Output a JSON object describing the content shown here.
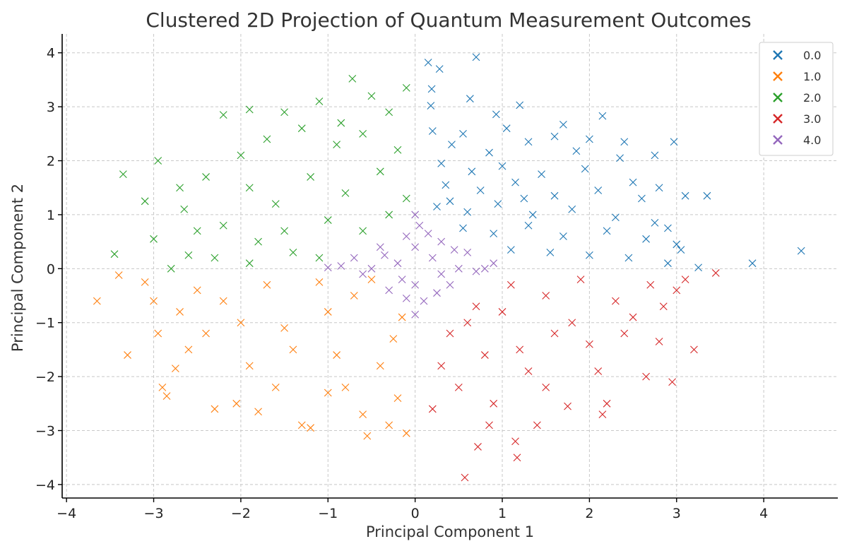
{
  "chart_data": {
    "type": "scatter",
    "title": "Clustered 2D Projection of Quantum Measurement Outcomes",
    "xlabel": "Principal Component 1",
    "ylabel": "Principal Component 2",
    "xlim": [
      -4.05,
      4.85
    ],
    "ylim": [
      -4.25,
      4.35
    ],
    "xticks": [
      -4,
      -3,
      -2,
      -1,
      0,
      1,
      2,
      3,
      4
    ],
    "yticks": [
      -4,
      -3,
      -2,
      -1,
      0,
      1,
      2,
      3,
      4
    ],
    "xtick_labels": [
      "−4",
      "−3",
      "−2",
      "−1",
      "0",
      "1",
      "2",
      "3",
      "4"
    ],
    "ytick_labels": [
      "−4",
      "−3",
      "−2",
      "−1",
      "0",
      "1",
      "2",
      "3",
      "4"
    ],
    "grid": true,
    "marker": "x",
    "legend_position": "top-right",
    "series": [
      {
        "name": "0.0",
        "color": "#1f77b4",
        "points": [
          [
            0.15,
            3.82
          ],
          [
            0.7,
            3.92
          ],
          [
            0.28,
            3.7
          ],
          [
            0.19,
            3.33
          ],
          [
            0.63,
            3.15
          ],
          [
            1.2,
            3.03
          ],
          [
            0.18,
            3.02
          ],
          [
            0.93,
            2.86
          ],
          [
            1.7,
            2.67
          ],
          [
            2.15,
            2.83
          ],
          [
            2.97,
            2.35
          ],
          [
            0.42,
            2.3
          ],
          [
            0.85,
            2.15
          ],
          [
            1.3,
            2.35
          ],
          [
            1.85,
            2.18
          ],
          [
            2.35,
            2.05
          ],
          [
            2.75,
            2.1
          ],
          [
            0.3,
            1.95
          ],
          [
            0.65,
            1.8
          ],
          [
            1.0,
            1.9
          ],
          [
            1.45,
            1.75
          ],
          [
            1.95,
            1.85
          ],
          [
            2.5,
            1.6
          ],
          [
            2.8,
            1.5
          ],
          [
            0.35,
            1.55
          ],
          [
            0.75,
            1.45
          ],
          [
            1.15,
            1.6
          ],
          [
            1.6,
            1.35
          ],
          [
            2.1,
            1.45
          ],
          [
            2.6,
            1.3
          ],
          [
            3.1,
            1.35
          ],
          [
            3.35,
            1.35
          ],
          [
            0.25,
            1.15
          ],
          [
            0.6,
            1.05
          ],
          [
            0.95,
            1.2
          ],
          [
            1.35,
            1.0
          ],
          [
            1.8,
            1.1
          ],
          [
            2.3,
            0.95
          ],
          [
            2.75,
            0.85
          ],
          [
            0.55,
            0.75
          ],
          [
            0.9,
            0.65
          ],
          [
            1.3,
            0.8
          ],
          [
            1.7,
            0.6
          ],
          [
            2.2,
            0.7
          ],
          [
            2.65,
            0.55
          ],
          [
            3.0,
            0.45
          ],
          [
            1.1,
            0.35
          ],
          [
            1.55,
            0.3
          ],
          [
            2.0,
            0.25
          ],
          [
            2.45,
            0.2
          ],
          [
            2.9,
            0.1
          ],
          [
            3.25,
            0.02
          ],
          [
            3.87,
            0.1
          ],
          [
            4.43,
            0.33
          ],
          [
            0.2,
            2.55
          ],
          [
            0.55,
            2.5
          ],
          [
            1.05,
            2.6
          ],
          [
            1.6,
            2.45
          ],
          [
            2.0,
            2.4
          ],
          [
            2.4,
            2.35
          ],
          [
            0.4,
            1.25
          ],
          [
            1.25,
            1.3
          ],
          [
            2.9,
            0.75
          ],
          [
            3.05,
            0.35
          ]
        ]
      },
      {
        "name": "1.0",
        "color": "#ff7f0e",
        "points": [
          [
            -3.65,
            -0.6
          ],
          [
            -3.4,
            -0.12
          ],
          [
            -3.3,
            -1.6
          ],
          [
            -3.1,
            -0.25
          ],
          [
            -2.9,
            -2.2
          ],
          [
            -2.85,
            -2.36
          ],
          [
            -2.95,
            -1.2
          ],
          [
            -2.7,
            -0.8
          ],
          [
            -2.6,
            -1.5
          ],
          [
            -2.3,
            -2.6
          ],
          [
            -2.05,
            -2.5
          ],
          [
            -2.4,
            -1.2
          ],
          [
            -2.2,
            -0.6
          ],
          [
            -1.9,
            -1.8
          ],
          [
            -1.7,
            -0.3
          ],
          [
            -1.5,
            -1.1
          ],
          [
            -1.3,
            -2.9
          ],
          [
            -1.2,
            -2.95
          ],
          [
            -1.0,
            -2.3
          ],
          [
            -0.9,
            -1.6
          ],
          [
            -0.7,
            -0.5
          ],
          [
            -0.6,
            -2.7
          ],
          [
            -0.55,
            -3.1
          ],
          [
            -0.3,
            -2.9
          ],
          [
            -0.25,
            -1.3
          ],
          [
            -0.1,
            -3.05
          ],
          [
            -0.15,
            -0.9
          ],
          [
            -0.4,
            -1.8
          ],
          [
            -1.1,
            -0.25
          ],
          [
            -1.6,
            -2.2
          ],
          [
            -2.0,
            -1.0
          ],
          [
            -2.5,
            -0.4
          ],
          [
            -3.0,
            -0.6
          ],
          [
            -1.8,
            -2.65
          ],
          [
            -0.8,
            -2.2
          ],
          [
            -0.5,
            -0.2
          ],
          [
            -1.4,
            -1.5
          ],
          [
            -1.0,
            -0.8
          ],
          [
            -0.2,
            -2.4
          ],
          [
            -2.75,
            -1.85
          ]
        ]
      },
      {
        "name": "2.0",
        "color": "#2ca02c",
        "points": [
          [
            -0.72,
            3.52
          ],
          [
            -0.1,
            3.35
          ],
          [
            -0.5,
            3.2
          ],
          [
            -2.2,
            2.85
          ],
          [
            -1.9,
            2.95
          ],
          [
            -1.1,
            3.1
          ],
          [
            -1.5,
            2.9
          ],
          [
            -0.3,
            2.9
          ],
          [
            -2.95,
            2.0
          ],
          [
            -3.35,
            1.75
          ],
          [
            -3.1,
            1.25
          ],
          [
            -3.45,
            0.27
          ],
          [
            -2.8,
            0.0
          ],
          [
            -2.6,
            0.25
          ],
          [
            -3.0,
            0.55
          ],
          [
            -2.5,
            0.7
          ],
          [
            -2.7,
            1.5
          ],
          [
            -2.4,
            1.7
          ],
          [
            -2.0,
            2.1
          ],
          [
            -1.7,
            2.4
          ],
          [
            -1.3,
            2.6
          ],
          [
            -0.9,
            2.3
          ],
          [
            -0.6,
            2.5
          ],
          [
            -0.2,
            2.2
          ],
          [
            -1.9,
            1.5
          ],
          [
            -1.6,
            1.2
          ],
          [
            -1.2,
            1.7
          ],
          [
            -0.8,
            1.4
          ],
          [
            -0.4,
            1.8
          ],
          [
            -0.1,
            1.3
          ],
          [
            -2.2,
            0.8
          ],
          [
            -1.8,
            0.5
          ],
          [
            -1.4,
            0.3
          ],
          [
            -1.0,
            0.9
          ],
          [
            -0.6,
            0.7
          ],
          [
            -0.3,
            1.0
          ],
          [
            -2.3,
            0.2
          ],
          [
            -1.9,
            0.1
          ],
          [
            -1.5,
            0.7
          ],
          [
            -1.1,
            0.2
          ],
          [
            -2.65,
            1.1
          ],
          [
            -0.85,
            2.7
          ]
        ]
      },
      {
        "name": "3.0",
        "color": "#d62728",
        "points": [
          [
            0.57,
            -3.87
          ],
          [
            1.17,
            -3.5
          ],
          [
            0.72,
            -3.3
          ],
          [
            1.15,
            -3.2
          ],
          [
            0.85,
            -2.9
          ],
          [
            1.4,
            -2.9
          ],
          [
            2.15,
            -2.7
          ],
          [
            1.75,
            -2.55
          ],
          [
            3.2,
            -1.5
          ],
          [
            2.8,
            -1.35
          ],
          [
            2.95,
            -2.1
          ],
          [
            3.0,
            -0.4
          ],
          [
            3.45,
            -0.08
          ],
          [
            2.65,
            -2.0
          ],
          [
            2.4,
            -1.2
          ],
          [
            2.1,
            -1.9
          ],
          [
            1.8,
            -1.0
          ],
          [
            1.5,
            -2.2
          ],
          [
            1.2,
            -1.5
          ],
          [
            0.9,
            -2.5
          ],
          [
            0.6,
            -1.0
          ],
          [
            0.3,
            -1.8
          ],
          [
            0.2,
            -2.6
          ],
          [
            2.7,
            -0.3
          ],
          [
            2.3,
            -0.6
          ],
          [
            1.9,
            -0.2
          ],
          [
            1.5,
            -0.5
          ],
          [
            1.1,
            -0.3
          ],
          [
            0.7,
            -0.7
          ],
          [
            0.4,
            -1.2
          ],
          [
            2.5,
            -0.9
          ],
          [
            1.3,
            -1.9
          ],
          [
            0.5,
            -2.2
          ],
          [
            1.0,
            -0.8
          ],
          [
            2.0,
            -1.4
          ],
          [
            1.6,
            -1.2
          ],
          [
            0.8,
            -1.6
          ],
          [
            2.85,
            -0.7
          ],
          [
            3.1,
            -0.2
          ],
          [
            2.2,
            -2.5
          ]
        ]
      },
      {
        "name": "4.0",
        "color": "#9467bd",
        "points": [
          [
            0.0,
            1.0
          ],
          [
            0.05,
            0.8
          ],
          [
            -0.1,
            0.6
          ],
          [
            0.3,
            0.5
          ],
          [
            -0.4,
            0.4
          ],
          [
            0.6,
            0.3
          ],
          [
            -0.7,
            0.2
          ],
          [
            0.9,
            0.1
          ],
          [
            -1.0,
            0.02
          ],
          [
            0.7,
            -0.05
          ],
          [
            -0.6,
            -0.1
          ],
          [
            0.4,
            -0.3
          ],
          [
            -0.3,
            -0.4
          ],
          [
            0.1,
            -0.6
          ],
          [
            0.0,
            -0.85
          ],
          [
            0.2,
            0.2
          ],
          [
            -0.2,
            0.1
          ],
          [
            0.5,
            0.0
          ],
          [
            -0.5,
            0.0
          ],
          [
            0.0,
            0.4
          ],
          [
            0.0,
            -0.3
          ],
          [
            0.3,
            -0.1
          ],
          [
            -0.15,
            -0.2
          ],
          [
            0.15,
            0.65
          ],
          [
            -0.35,
            0.25
          ],
          [
            0.8,
            0.0
          ],
          [
            -0.85,
            0.05
          ],
          [
            0.25,
            -0.45
          ],
          [
            -0.1,
            -0.55
          ],
          [
            0.45,
            0.35
          ]
        ]
      }
    ]
  }
}
